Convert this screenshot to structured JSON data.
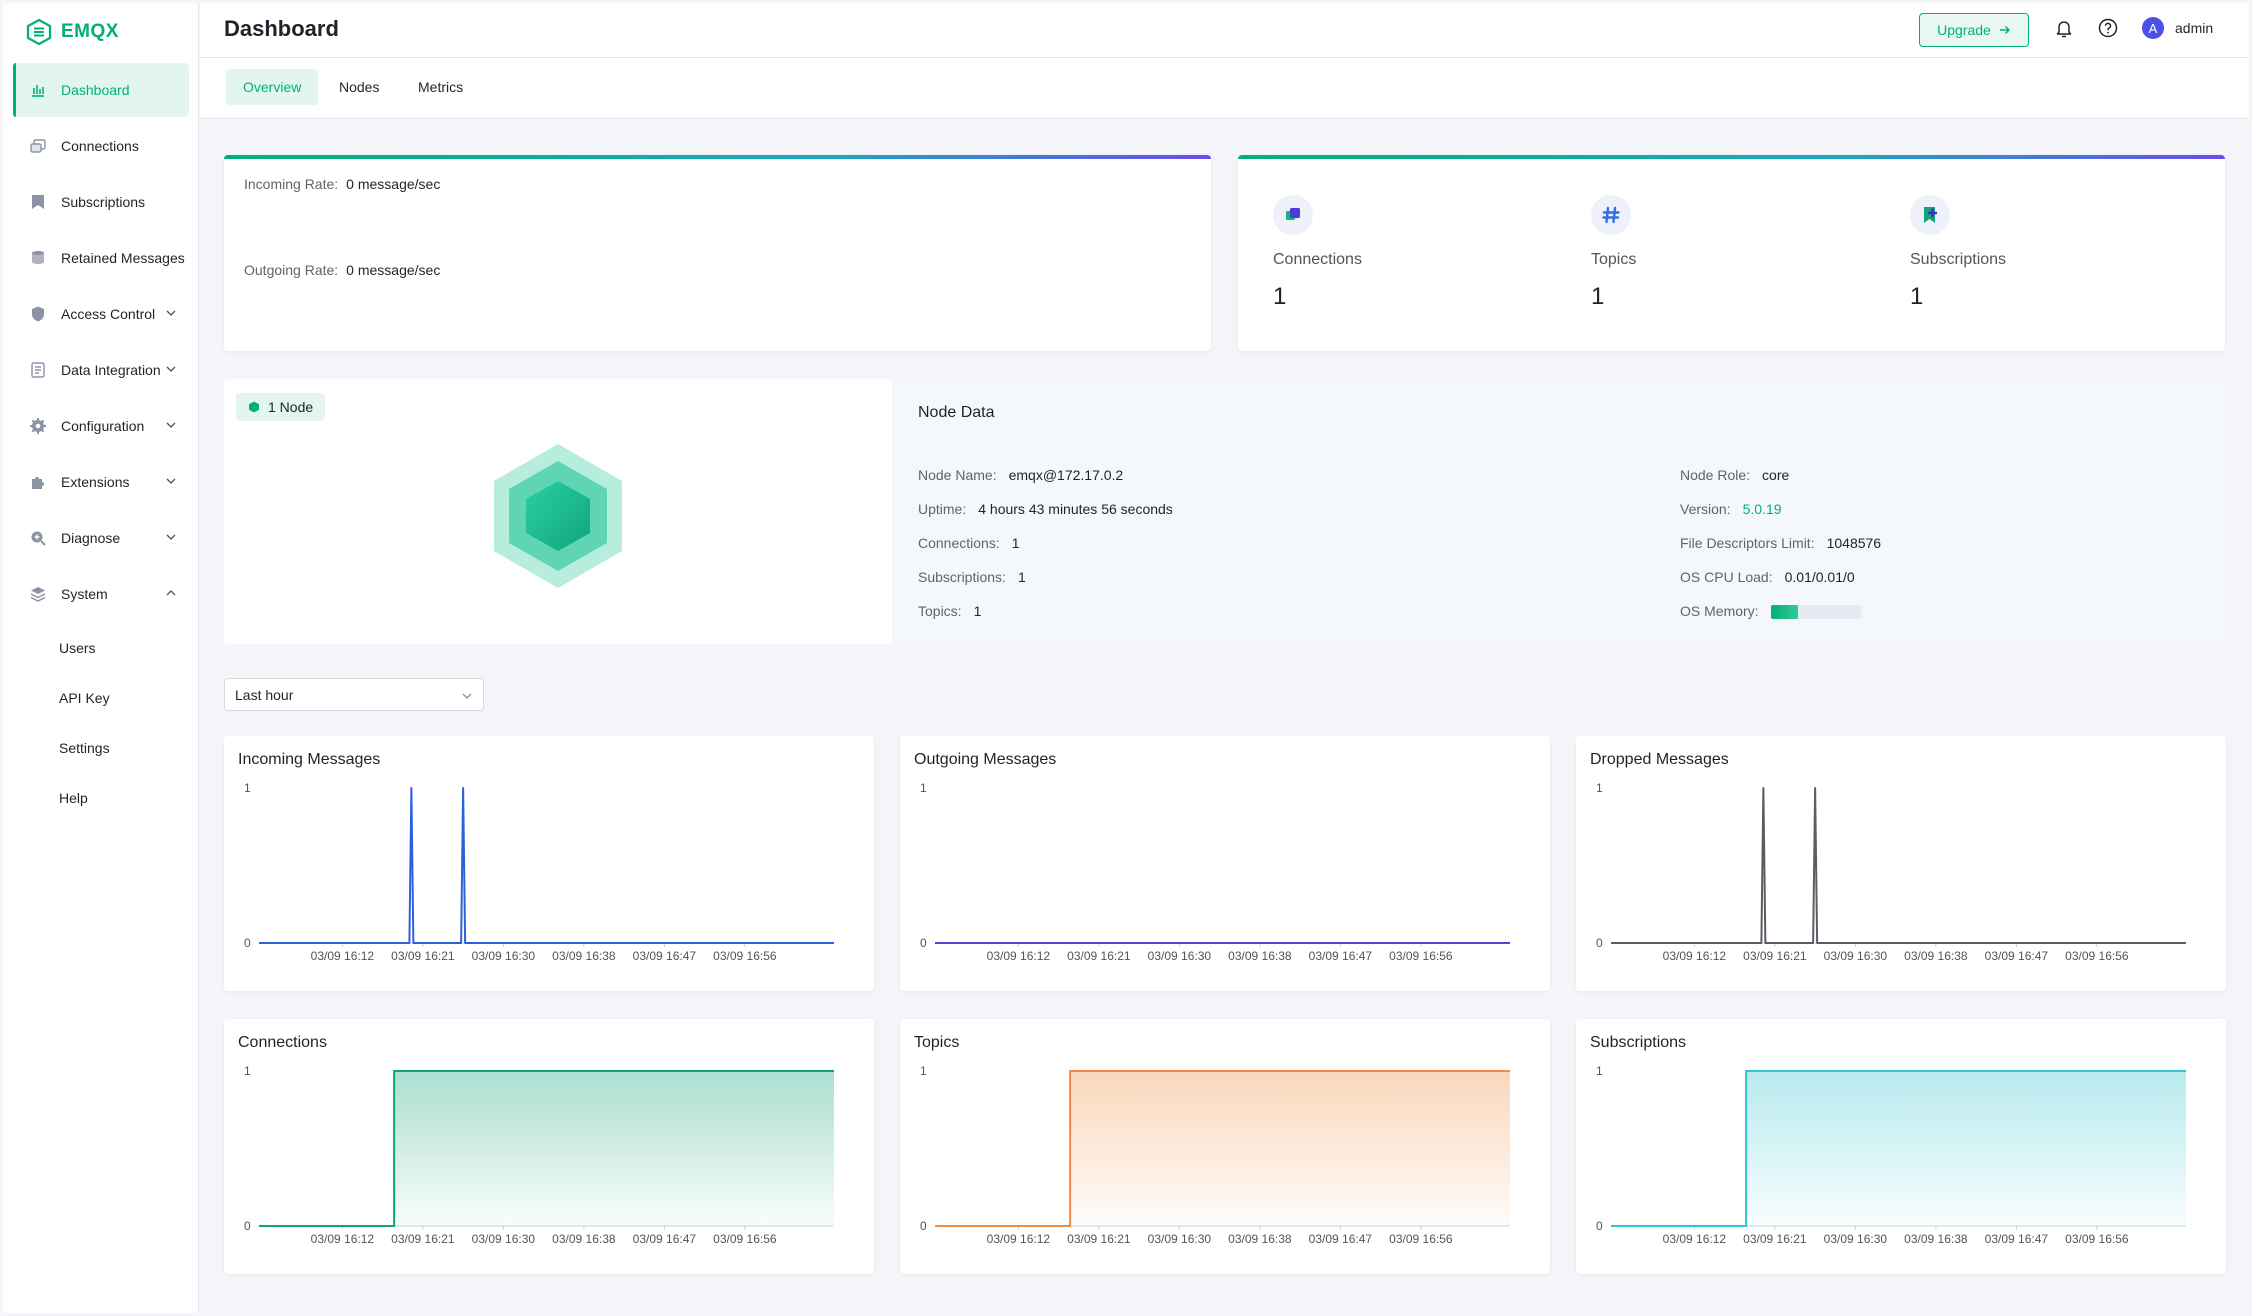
{
  "app": {
    "logo_text": "EMQX",
    "brand_color": "#00b173"
  },
  "sidebar": {
    "items": [
      {
        "label": "Dashboard",
        "icon": "dashboard-icon",
        "active": true
      },
      {
        "label": "Connections",
        "icon": "connections-icon"
      },
      {
        "label": "Subscriptions",
        "icon": "subscriptions-icon"
      },
      {
        "label": "Retained Messages",
        "icon": "retained-messages-icon"
      },
      {
        "label": "Access Control",
        "icon": "shield-icon",
        "expandable": true
      },
      {
        "label": "Data Integration",
        "icon": "data-integration-icon",
        "expandable": true
      },
      {
        "label": "Configuration",
        "icon": "gear-icon",
        "expandable": true
      },
      {
        "label": "Extensions",
        "icon": "puzzle-icon",
        "expandable": true
      },
      {
        "label": "Diagnose",
        "icon": "diagnose-icon",
        "expandable": true
      },
      {
        "label": "System",
        "icon": "system-icon",
        "expandable": true,
        "expanded": true
      }
    ],
    "system_children": [
      "Users",
      "API Key",
      "Settings",
      "Help"
    ]
  },
  "header": {
    "title": "Dashboard",
    "upgrade_label": "Upgrade",
    "user": "admin",
    "avatar_letter": "A"
  },
  "tabs": [
    "Overview",
    "Nodes",
    "Metrics"
  ],
  "rates": {
    "incoming_label": "Incoming Rate:",
    "incoming_value": "0 message/sec",
    "outgoing_label": "Outgoing Rate:",
    "outgoing_value": "0 message/sec"
  },
  "stats": [
    {
      "label": "Connections",
      "value": "1",
      "icon": "connections-stat-icon"
    },
    {
      "label": "Topics",
      "value": "1",
      "icon": "hash-icon"
    },
    {
      "label": "Subscriptions",
      "value": "1",
      "icon": "bookmark-icon"
    }
  ],
  "node": {
    "badge": "1 Node",
    "data_title": "Node Data",
    "left": [
      {
        "k": "Node Name:",
        "v": "emqx@172.17.0.2"
      },
      {
        "k": "Uptime:",
        "v": "4 hours 43 minutes 56 seconds"
      },
      {
        "k": "Connections:",
        "v": "1"
      },
      {
        "k": "Subscriptions:",
        "v": "1"
      },
      {
        "k": "Topics:",
        "v": "1"
      }
    ],
    "right": [
      {
        "k": "Node Role:",
        "v": "core"
      },
      {
        "k": "Version:",
        "v": "5.0.19"
      },
      {
        "k": "File Descriptors Limit:",
        "v": "1048576"
      },
      {
        "k": "OS CPU Load:",
        "v": "0.01/0.01/0"
      },
      {
        "k": "OS Memory:",
        "v": ""
      }
    ],
    "os_memory_fraction": 0.3
  },
  "time_range": {
    "selected": "Last hour"
  },
  "chart_data": [
    {
      "type": "line",
      "title": "Incoming Messages",
      "color": "#2e5fe0",
      "fill": false,
      "x": [
        "03/09 16:12",
        "03/09 16:21",
        "03/09 16:30",
        "03/09 16:38",
        "03/09 16:47",
        "03/09 16:56"
      ],
      "ylim": [
        0,
        1
      ],
      "yticks": [
        "1",
        "0"
      ],
      "spikes": [
        0.265,
        0.355
      ]
    },
    {
      "type": "line",
      "title": "Outgoing Messages",
      "color": "#5b3fd8",
      "fill": false,
      "x": [
        "03/09 16:12",
        "03/09 16:21",
        "03/09 16:30",
        "03/09 16:38",
        "03/09 16:47",
        "03/09 16:56"
      ],
      "ylim": [
        0,
        1
      ],
      "yticks": [
        "1",
        "0"
      ],
      "spikes": []
    },
    {
      "type": "line",
      "title": "Dropped Messages",
      "color": "#5b5d66",
      "fill": false,
      "x": [
        "03/09 16:12",
        "03/09 16:21",
        "03/09 16:30",
        "03/09 16:38",
        "03/09 16:47",
        "03/09 16:56"
      ],
      "ylim": [
        0,
        1
      ],
      "yticks": [
        "1",
        "0"
      ],
      "spikes": [
        0.265,
        0.355
      ]
    },
    {
      "type": "area",
      "title": "Connections",
      "color": "#10a37a",
      "x": [
        "03/09 16:12",
        "03/09 16:21",
        "03/09 16:30",
        "03/09 16:38",
        "03/09 16:47",
        "03/09 16:56"
      ],
      "ylim": [
        0,
        1
      ],
      "yticks": [
        "1",
        "0"
      ],
      "step_at": 0.235
    },
    {
      "type": "area",
      "title": "Topics",
      "color": "#f28c3c",
      "x": [
        "03/09 16:12",
        "03/09 16:21",
        "03/09 16:30",
        "03/09 16:38",
        "03/09 16:47",
        "03/09 16:56"
      ],
      "ylim": [
        0,
        1
      ],
      "yticks": [
        "1",
        "0"
      ],
      "step_at": 0.235
    },
    {
      "type": "area",
      "title": "Subscriptions",
      "color": "#31c3cf",
      "x": [
        "03/09 16:12",
        "03/09 16:21",
        "03/09 16:30",
        "03/09 16:38",
        "03/09 16:47",
        "03/09 16:56"
      ],
      "ylim": [
        0,
        1
      ],
      "yticks": [
        "1",
        "0"
      ],
      "step_at": 0.235
    }
  ]
}
